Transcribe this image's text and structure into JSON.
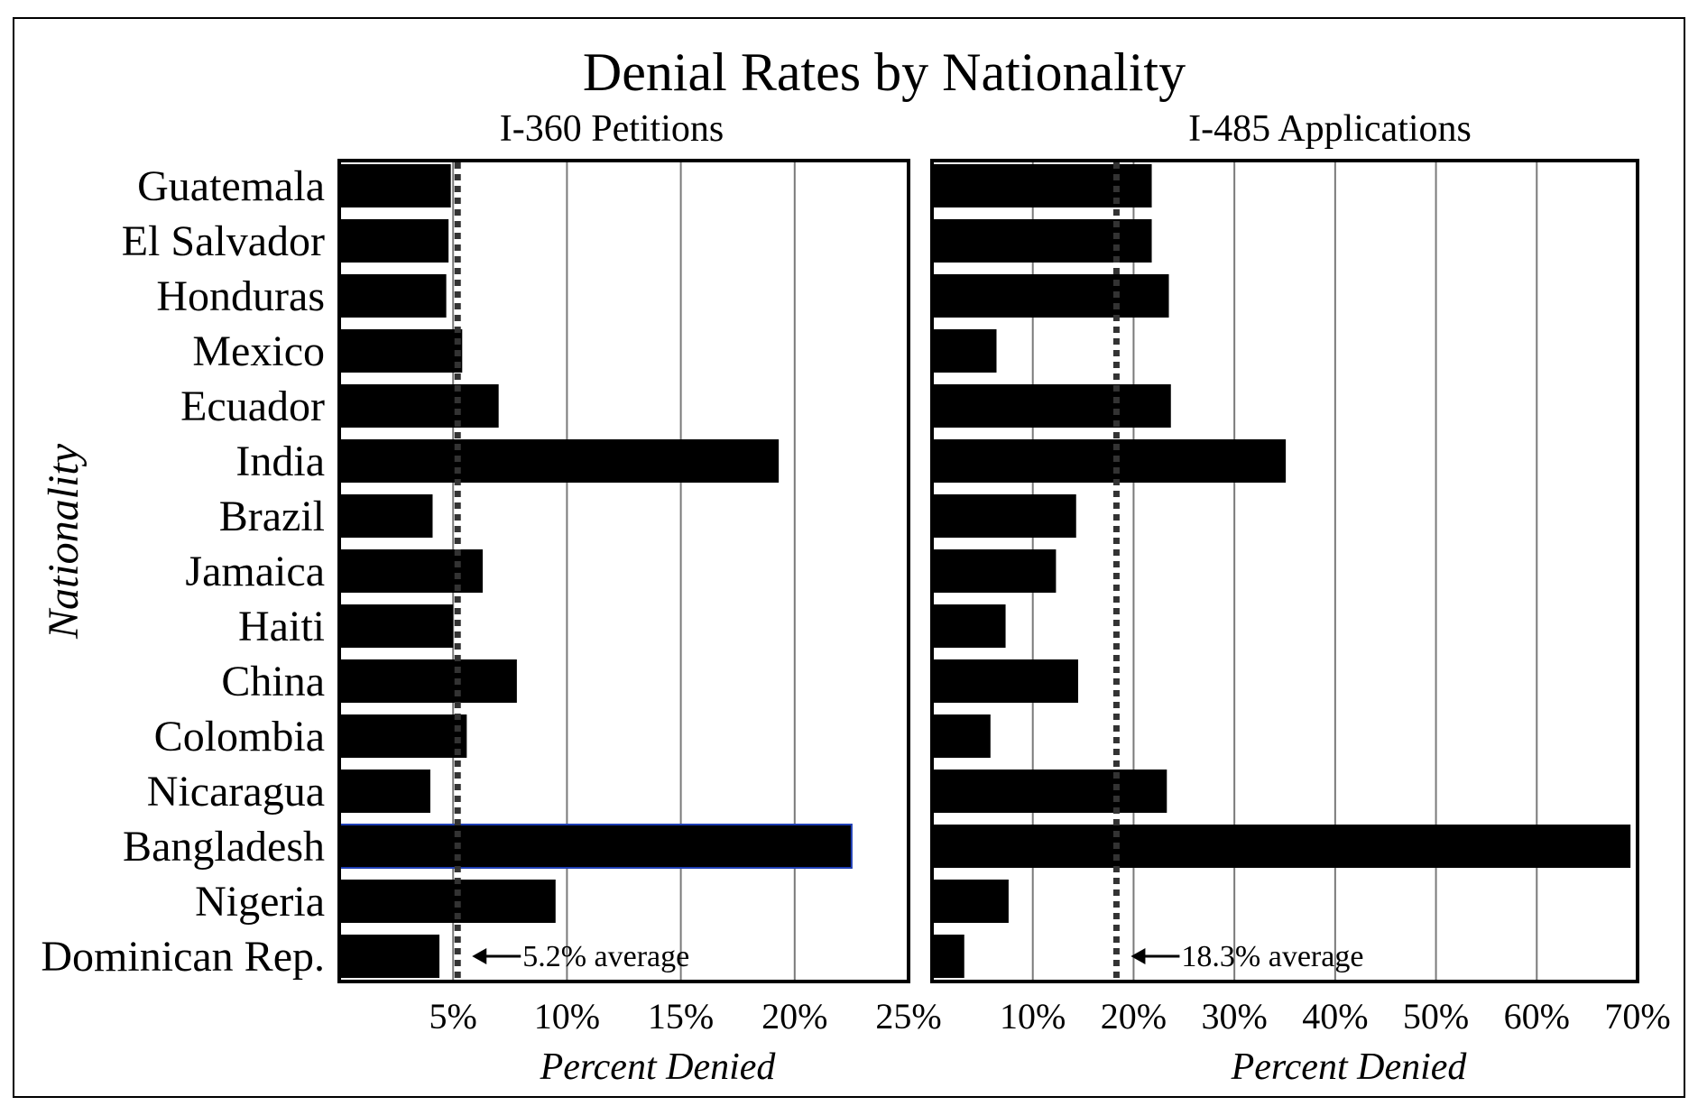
{
  "colors": {
    "bar": "#000000",
    "grid": "#7a7a7a",
    "average_line": "#333333",
    "highlight_border": "#1f3fb5"
  },
  "chart_data": [
    {
      "type": "bar",
      "orientation": "horizontal",
      "title": "Denial Rates by Nationality",
      "subtitle": "I-360 Petitions",
      "xlabel": "Percent Denied",
      "ylabel": "Nationality",
      "xlim": [
        0,
        25
      ],
      "xticks": [
        "5%",
        "10%",
        "15%",
        "20%",
        "25%"
      ],
      "xtick_values": [
        5,
        10,
        15,
        20,
        25
      ],
      "grid": "vertical",
      "categories": [
        "Guatemala",
        "El Salvador",
        "Honduras",
        "Mexico",
        "Ecuador",
        "India",
        "Brazil",
        "Jamaica",
        "Haiti",
        "China",
        "Colombia",
        "Nicaragua",
        "Bangladesh",
        "Nigeria",
        "Dominican Rep."
      ],
      "values": [
        4.9,
        4.8,
        4.7,
        5.4,
        7.0,
        19.3,
        4.1,
        6.3,
        5.0,
        7.8,
        5.6,
        4.0,
        22.5,
        9.5,
        4.4
      ],
      "highlight": "Bangladesh",
      "average": 5.2,
      "annotation": "5.2% average"
    },
    {
      "type": "bar",
      "orientation": "horizontal",
      "subtitle": "I-485 Applications",
      "xlabel": "Percent Denied",
      "xlim": [
        0,
        70
      ],
      "xticks": [
        "10%",
        "20%",
        "30%",
        "40%",
        "50%",
        "60%",
        "70%"
      ],
      "xtick_values": [
        10,
        20,
        30,
        40,
        50,
        60,
        70
      ],
      "grid": "vertical",
      "categories": [
        "Guatemala",
        "El Salvador",
        "Honduras",
        "Mexico",
        "Ecuador",
        "India",
        "Brazil",
        "Jamaica",
        "Haiti",
        "China",
        "Colombia",
        "Nicaragua",
        "Bangladesh",
        "Nigeria",
        "Dominican Rep."
      ],
      "values": [
        21.8,
        21.8,
        23.5,
        6.4,
        23.7,
        35.1,
        14.3,
        12.3,
        7.3,
        14.5,
        5.8,
        23.3,
        69.3,
        7.6,
        3.2
      ],
      "average": 18.3,
      "annotation": "18.3% average"
    }
  ]
}
